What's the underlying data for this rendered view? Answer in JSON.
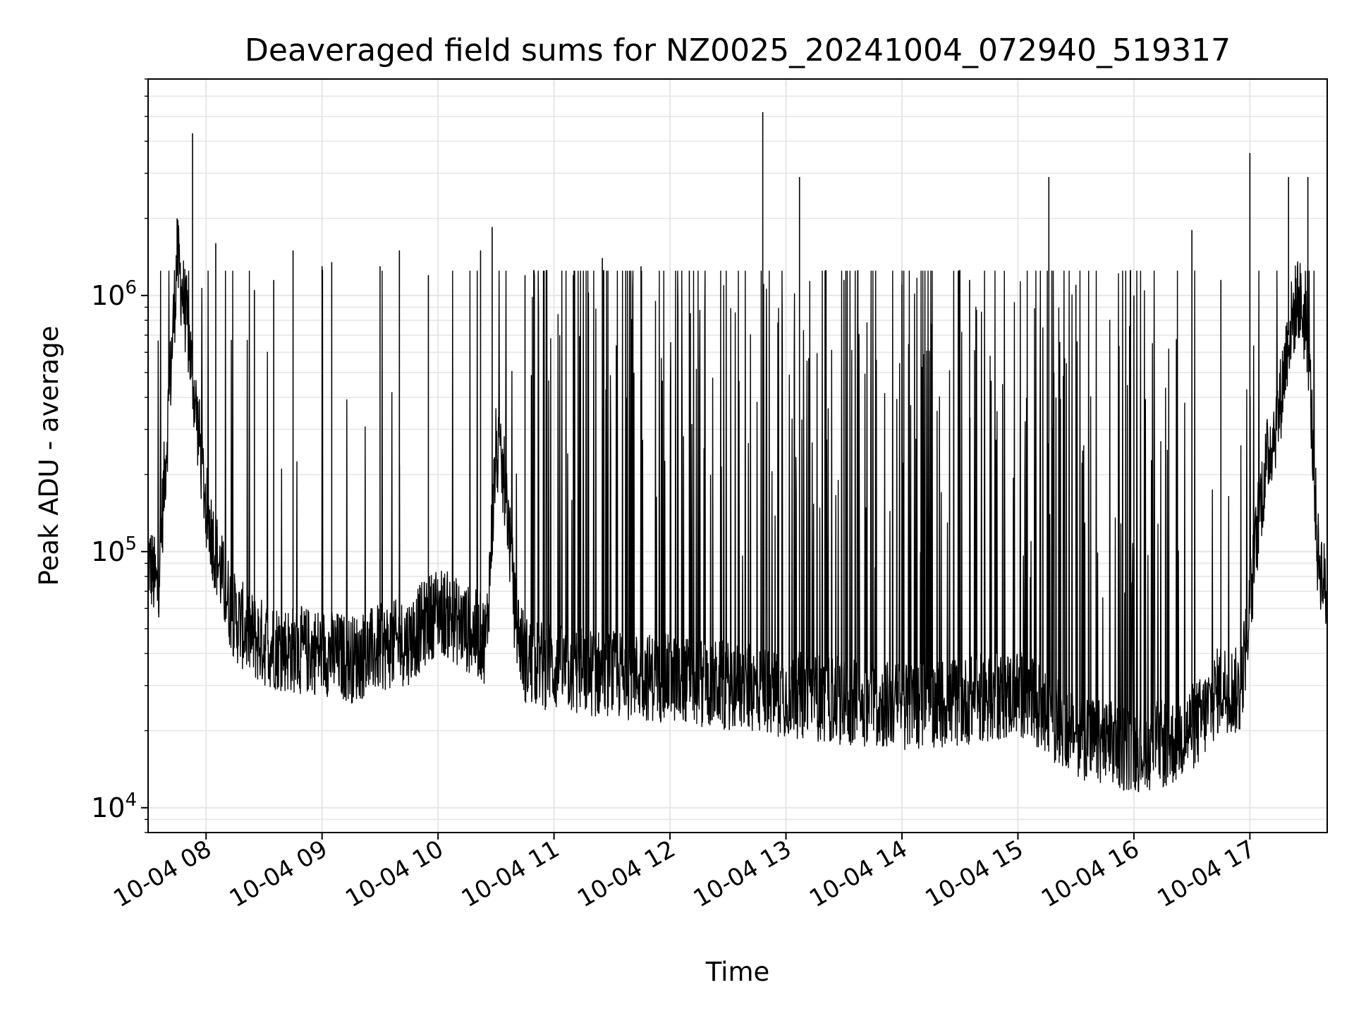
{
  "chart_data": {
    "type": "line",
    "title": "Deaveraged field sums for NZ0025_20241004_072940_519317",
    "xlabel": "Time",
    "ylabel": "Peak ADU - average",
    "yscale": "log",
    "grid": true,
    "legend": "none",
    "line_color": "#000000",
    "grid_color": "#e6e6e6",
    "x_range": [
      "2024-10-04 07:30",
      "2024-10-04 17:40"
    ],
    "ylim": [
      8000,
      7000000
    ],
    "x_ticks": [
      {
        "value": "2024-10-04 08:00",
        "label": "10-04 08"
      },
      {
        "value": "2024-10-04 09:00",
        "label": "10-04 09"
      },
      {
        "value": "2024-10-04 10:00",
        "label": "10-04 10"
      },
      {
        "value": "2024-10-04 11:00",
        "label": "10-04 11"
      },
      {
        "value": "2024-10-04 12:00",
        "label": "10-04 12"
      },
      {
        "value": "2024-10-04 13:00",
        "label": "10-04 13"
      },
      {
        "value": "2024-10-04 14:00",
        "label": "10-04 14"
      },
      {
        "value": "2024-10-04 15:00",
        "label": "10-04 15"
      },
      {
        "value": "2024-10-04 16:00",
        "label": "10-04 16"
      },
      {
        "value": "2024-10-04 17:00",
        "label": "10-04 17"
      }
    ],
    "y_ticks": [
      {
        "value": 10000,
        "base": "10",
        "exp": "4"
      },
      {
        "value": 100000,
        "base": "10",
        "exp": "5"
      },
      {
        "value": 1000000,
        "base": "10",
        "exp": "6"
      }
    ],
    "series": [
      {
        "x": [
          "2024-10-04 07:30",
          "2024-10-04 07:35",
          "2024-10-04 07:40",
          "2024-10-04 07:45",
          "2024-10-04 07:50",
          "2024-10-04 07:55",
          "2024-10-04 08:00",
          "2024-10-04 08:05",
          "2024-10-04 08:10",
          "2024-10-04 08:15",
          "2024-10-04 08:20",
          "2024-10-04 08:25",
          "2024-10-04 08:30",
          "2024-10-04 08:40",
          "2024-10-04 08:50",
          "2024-10-04 09:00",
          "2024-10-04 09:15",
          "2024-10-04 09:30",
          "2024-10-04 09:45",
          "2024-10-04 10:00",
          "2024-10-04 10:15",
          "2024-10-04 10:25",
          "2024-10-04 10:30",
          "2024-10-04 10:35",
          "2024-10-04 10:40",
          "2024-10-04 10:45",
          "2024-10-04 11:00",
          "2024-10-04 11:30",
          "2024-10-04 12:00",
          "2024-10-04 12:30",
          "2024-10-04 13:00",
          "2024-10-04 13:30",
          "2024-10-04 14:00",
          "2024-10-04 14:30",
          "2024-10-04 15:00",
          "2024-10-04 15:20",
          "2024-10-04 15:40",
          "2024-10-04 16:00",
          "2024-10-04 16:20",
          "2024-10-04 16:35",
          "2024-10-04 16:45",
          "2024-10-04 16:55",
          "2024-10-04 17:00",
          "2024-10-04 17:05",
          "2024-10-04 17:10",
          "2024-10-04 17:15",
          "2024-10-04 17:20",
          "2024-10-04 17:25",
          "2024-10-04 17:30",
          "2024-10-04 17:35",
          "2024-10-04 17:40"
        ],
        "base": [
          95000,
          70000,
          300000,
          1400000,
          800000,
          350000,
          150000,
          100000,
          70000,
          55000,
          50000,
          46000,
          44000,
          42000,
          41000,
          41000,
          38000,
          42000,
          45000,
          60000,
          50000,
          45000,
          250000,
          180000,
          55000,
          38000,
          35000,
          33000,
          32000,
          30000,
          28000,
          26000,
          25000,
          26000,
          28000,
          22000,
          18000,
          17000,
          18000,
          22000,
          30000,
          28000,
          60000,
          150000,
          250000,
          350000,
          700000,
          1000000,
          700000,
          100000,
          65000
        ]
      }
    ],
    "spikes": [
      {
        "x": "2024-10-04 07:53",
        "y": 4300000
      },
      {
        "x": "2024-10-04 07:45",
        "y": 2000000
      },
      {
        "x": "2024-10-04 08:05",
        "y": 1600000
      },
      {
        "x": "2024-10-04 08:25",
        "y": 1050000
      },
      {
        "x": "2024-10-04 08:35",
        "y": 1150000
      },
      {
        "x": "2024-10-04 08:45",
        "y": 1500000
      },
      {
        "x": "2024-10-04 09:00",
        "y": 1300000
      },
      {
        "x": "2024-10-04 09:05",
        "y": 1350000
      },
      {
        "x": "2024-10-04 09:30",
        "y": 1300000
      },
      {
        "x": "2024-10-04 09:40",
        "y": 1500000
      },
      {
        "x": "2024-10-04 09:55",
        "y": 1200000
      },
      {
        "x": "2024-10-04 10:22",
        "y": 1500000
      },
      {
        "x": "2024-10-04 10:28",
        "y": 1850000
      },
      {
        "x": "2024-10-04 10:45",
        "y": 1200000
      },
      {
        "x": "2024-10-04 11:10",
        "y": 1200000
      },
      {
        "x": "2024-10-04 11:25",
        "y": 1400000
      },
      {
        "x": "2024-10-04 11:45",
        "y": 1300000
      },
      {
        "x": "2024-10-04 12:10",
        "y": 1250000
      },
      {
        "x": "2024-10-04 12:48",
        "y": 5200000
      },
      {
        "x": "2024-10-04 13:07",
        "y": 2900000
      },
      {
        "x": "2024-10-04 13:30",
        "y": 1150000
      },
      {
        "x": "2024-10-04 14:00",
        "y": 1100000
      },
      {
        "x": "2024-10-04 14:35",
        "y": 1150000
      },
      {
        "x": "2024-10-04 15:16",
        "y": 2900000
      },
      {
        "x": "2024-10-04 15:30",
        "y": 1100000
      },
      {
        "x": "2024-10-04 16:00",
        "y": 1000000
      },
      {
        "x": "2024-10-04 16:30",
        "y": 1800000
      },
      {
        "x": "2024-10-04 16:45",
        "y": 1150000
      },
      {
        "x": "2024-10-04 17:00",
        "y": 3600000
      },
      {
        "x": "2024-10-04 17:20",
        "y": 2900000
      },
      {
        "x": "2024-10-04 17:30",
        "y": 2900000
      }
    ]
  }
}
